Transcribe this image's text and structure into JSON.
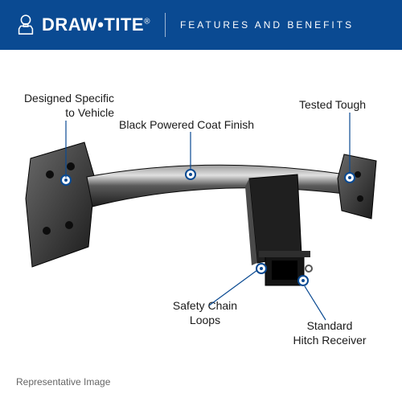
{
  "header": {
    "brand": "DRAW•TITE",
    "reg": "®",
    "subtitle": "FEATURES AND BENEFITS",
    "bg": "#0a4a92",
    "text_color": "#ffffff"
  },
  "accent": "#0a4a92",
  "callouts": {
    "designed": "Designed Specific\nto Vehicle",
    "finish": "Black Powered Coat Finish",
    "tough": "Tested Tough",
    "loops": "Safety Chain\nLoops",
    "receiver": "Standard\nHitch Receiver"
  },
  "footnote": "Representative Image",
  "product_colors": {
    "dark": "#2a2a2a",
    "light": "#8a8a8a",
    "mid": "#555555",
    "edge": "#e8e8e8"
  }
}
